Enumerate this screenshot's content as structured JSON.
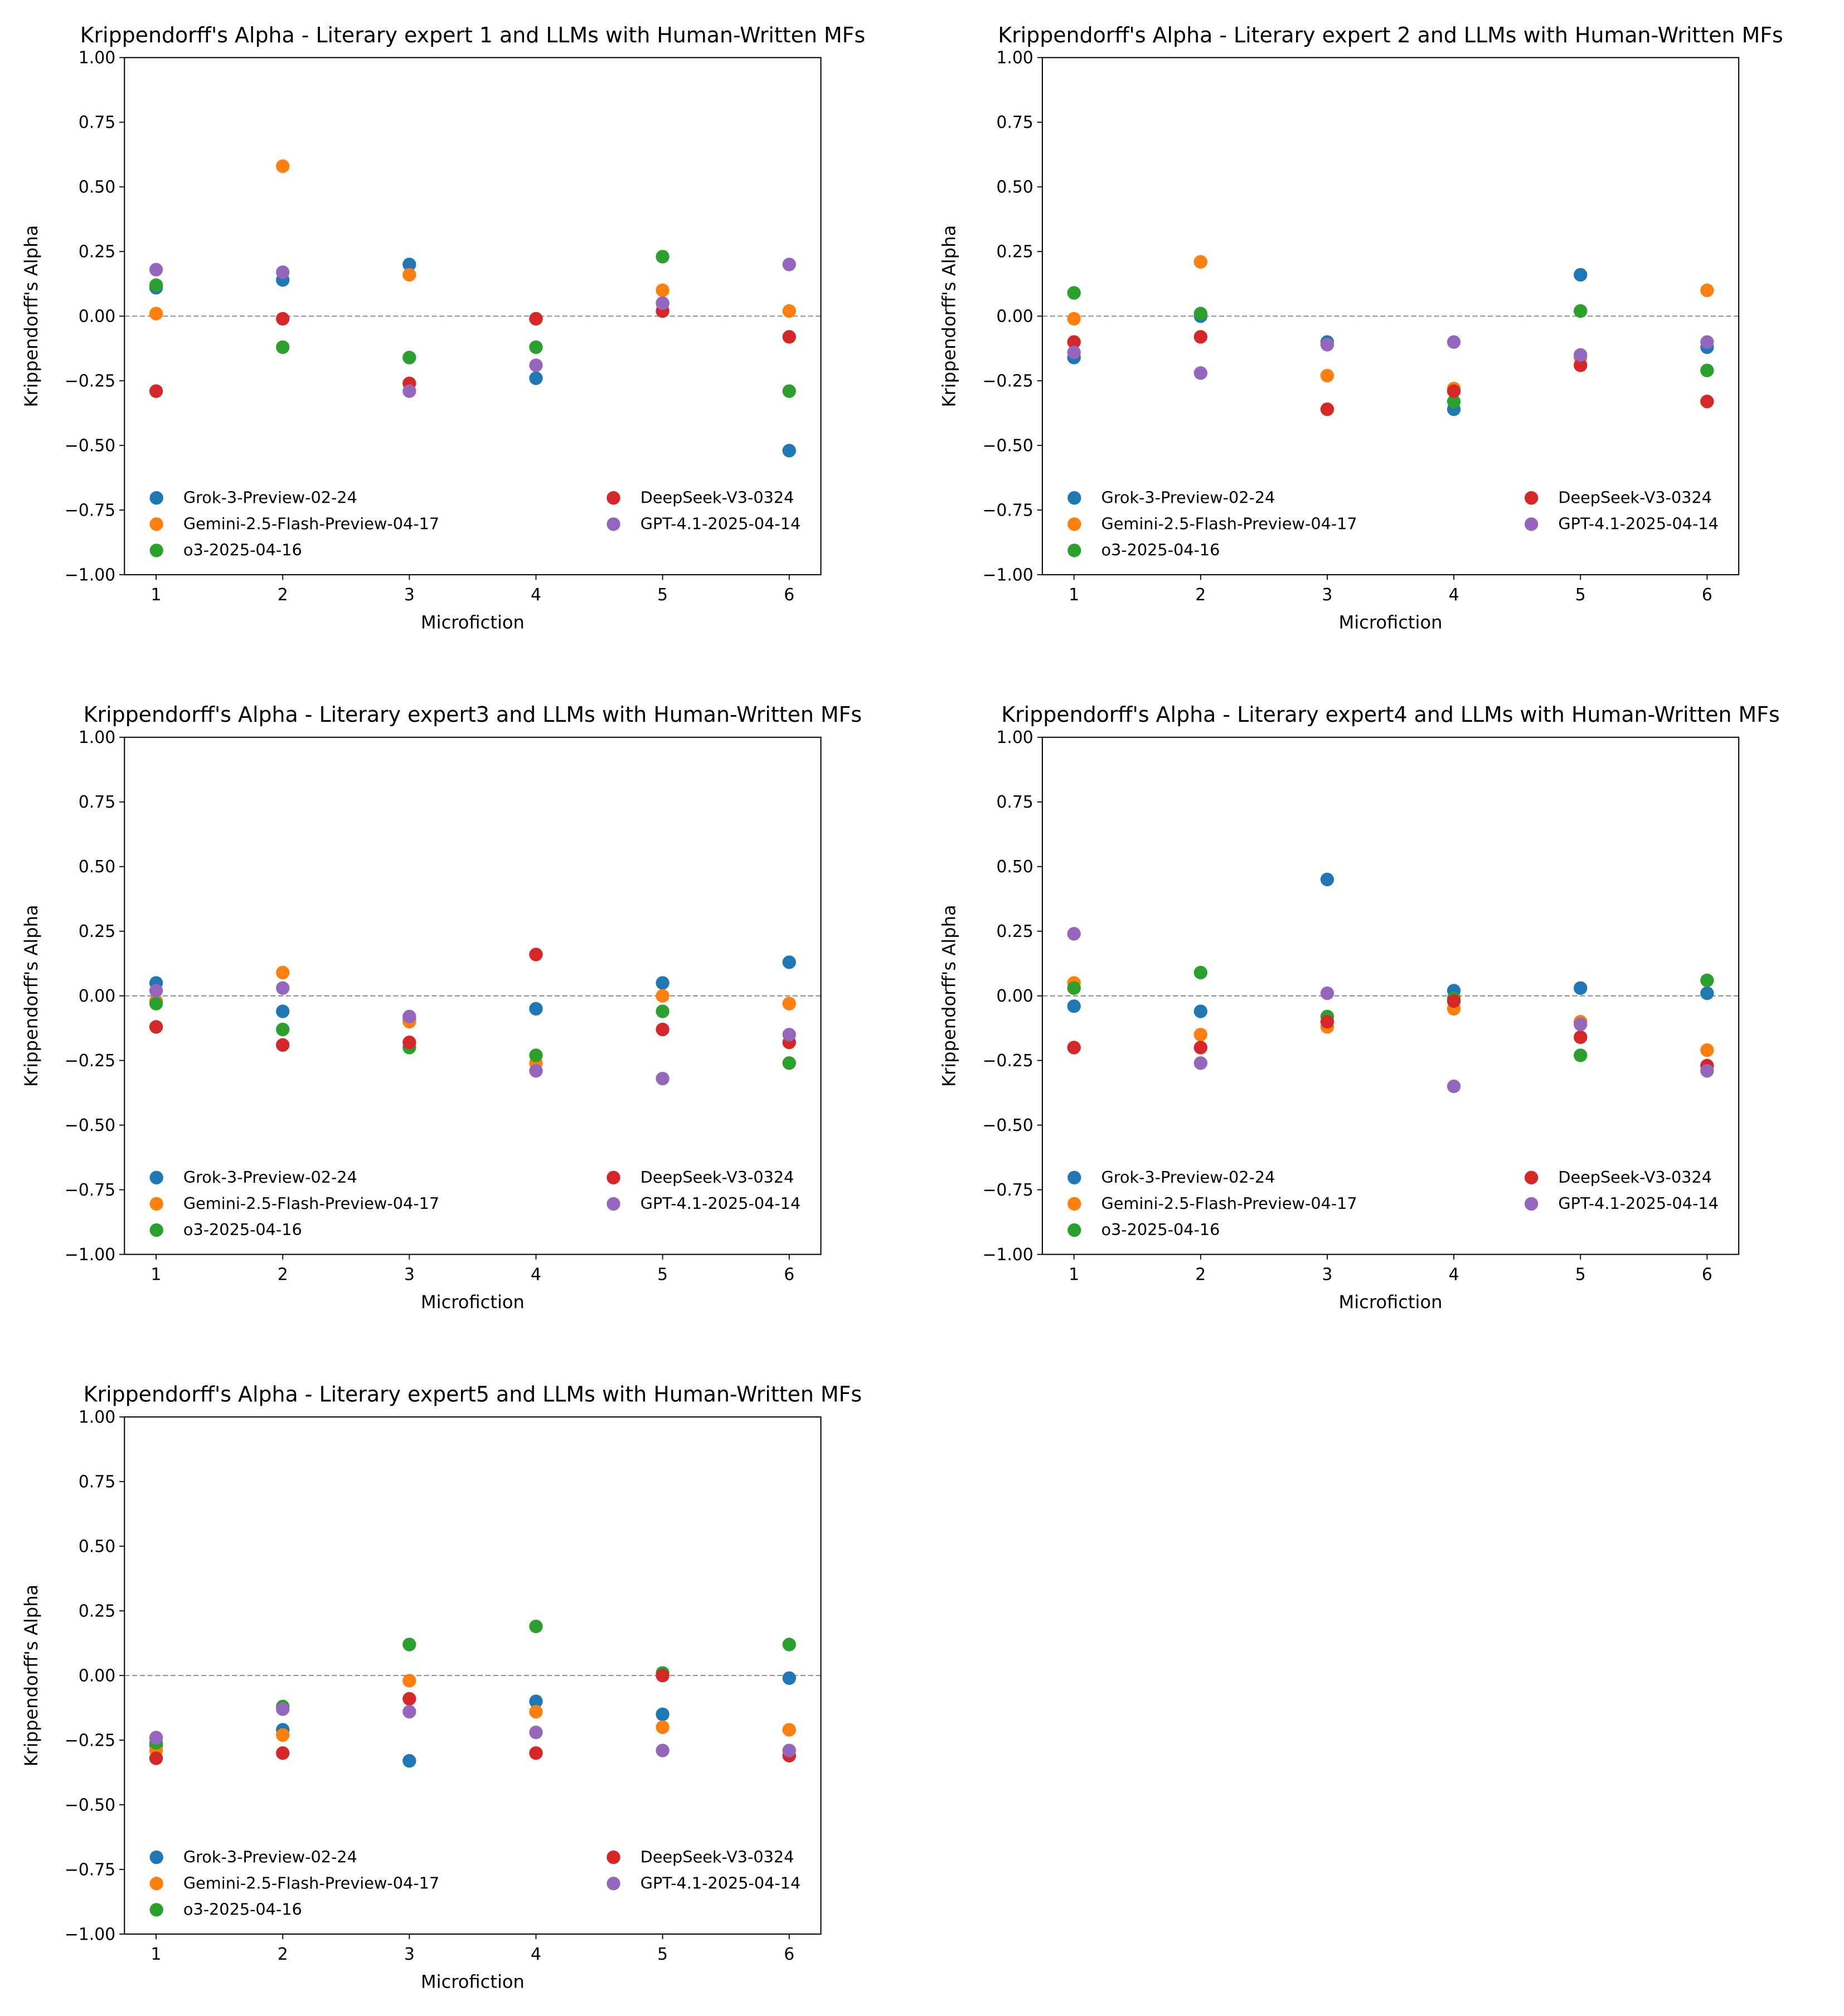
{
  "colors": {
    "Grok-3-Preview-02-24": "#1f77b4",
    "Gemini-2.5-Flash-Preview-04-17": "#ff7f0e",
    "o3-2025-04-16": "#2ca02c",
    "DeepSeek-V3-0324": "#d62728",
    "GPT-4.1-2025-04-14": "#9467bd"
  },
  "chart_data": [
    {
      "type": "scatter",
      "title": "Krippendorff's Alpha - Literary expert 1 and LLMs with Human-Written MFs",
      "xlabel": "Microfiction",
      "ylabel": "Krippendorff's Alpha",
      "ylim": [
        -1,
        1
      ],
      "xlim": [
        0.75,
        6.25
      ],
      "x": [
        1,
        2,
        3,
        4,
        5,
        6
      ],
      "yticks": [
        "1.00",
        "0.75",
        "0.50",
        "0.25",
        "0.00",
        "−0.25",
        "−0.50",
        "−0.75",
        "−1.00"
      ],
      "xticks": [
        "1",
        "2",
        "3",
        "4",
        "5",
        "6"
      ],
      "reference_line": 0,
      "legend": "lower center, 2 columns",
      "series": [
        {
          "name": "Grok-3-Preview-02-24",
          "values": [
            0.11,
            0.14,
            0.2,
            -0.24,
            0.05,
            -0.52
          ]
        },
        {
          "name": "Gemini-2.5-Flash-Preview-04-17",
          "values": [
            0.01,
            0.58,
            0.16,
            -0.01,
            0.1,
            0.02
          ]
        },
        {
          "name": "o3-2025-04-16",
          "values": [
            0.12,
            -0.12,
            -0.16,
            -0.12,
            0.23,
            -0.29
          ]
        },
        {
          "name": "DeepSeek-V3-0324",
          "values": [
            -0.29,
            -0.01,
            -0.26,
            -0.01,
            0.02,
            -0.08
          ]
        },
        {
          "name": "GPT-4.1-2025-04-14",
          "values": [
            0.18,
            0.17,
            -0.29,
            -0.19,
            0.05,
            0.2
          ]
        }
      ]
    },
    {
      "type": "scatter",
      "title": "Krippendorff's Alpha - Literary expert 2 and LLMs with Human-Written MFs",
      "xlabel": "Microfiction",
      "ylabel": "Krippendorff's Alpha",
      "ylim": [
        -1,
        1
      ],
      "xlim": [
        0.75,
        6.25
      ],
      "x": [
        1,
        2,
        3,
        4,
        5,
        6
      ],
      "yticks": [
        "1.00",
        "0.75",
        "0.50",
        "0.25",
        "0.00",
        "−0.25",
        "−0.50",
        "−0.75",
        "−1.00"
      ],
      "xticks": [
        "1",
        "2",
        "3",
        "4",
        "5",
        "6"
      ],
      "reference_line": 0,
      "legend": "lower center, 2 columns",
      "series": [
        {
          "name": "Grok-3-Preview-02-24",
          "values": [
            -0.16,
            0.0,
            -0.1,
            -0.36,
            0.16,
            -0.12
          ]
        },
        {
          "name": "Gemini-2.5-Flash-Preview-04-17",
          "values": [
            -0.01,
            0.21,
            -0.23,
            -0.28,
            -0.16,
            0.1
          ]
        },
        {
          "name": "o3-2025-04-16",
          "values": [
            0.09,
            0.01,
            -0.11,
            -0.33,
            0.02,
            -0.21
          ]
        },
        {
          "name": "DeepSeek-V3-0324",
          "values": [
            -0.1,
            -0.08,
            -0.36,
            -0.29,
            -0.19,
            -0.33
          ]
        },
        {
          "name": "GPT-4.1-2025-04-14",
          "values": [
            -0.14,
            -0.22,
            -0.11,
            -0.1,
            -0.15,
            -0.1
          ]
        }
      ]
    },
    {
      "type": "scatter",
      "title": "Krippendorff's Alpha - Literary expert3 and LLMs with Human-Written MFs",
      "xlabel": "Microfiction",
      "ylabel": "Krippendorff's Alpha",
      "ylim": [
        -1,
        1
      ],
      "xlim": [
        0.75,
        6.25
      ],
      "x": [
        1,
        2,
        3,
        4,
        5,
        6
      ],
      "yticks": [
        "1.00",
        "0.75",
        "0.50",
        "0.25",
        "0.00",
        "−0.25",
        "−0.50",
        "−0.75",
        "−1.00"
      ],
      "xticks": [
        "1",
        "2",
        "3",
        "4",
        "5",
        "6"
      ],
      "reference_line": 0,
      "legend": "lower center, 2 columns",
      "series": [
        {
          "name": "Grok-3-Preview-02-24",
          "values": [
            0.05,
            -0.06,
            -0.09,
            -0.05,
            0.05,
            0.13
          ]
        },
        {
          "name": "Gemini-2.5-Flash-Preview-04-17",
          "values": [
            -0.02,
            0.09,
            -0.1,
            -0.26,
            0.0,
            -0.03
          ]
        },
        {
          "name": "o3-2025-04-16",
          "values": [
            -0.03,
            -0.13,
            -0.2,
            -0.23,
            -0.06,
            -0.26
          ]
        },
        {
          "name": "DeepSeek-V3-0324",
          "values": [
            -0.12,
            -0.19,
            -0.18,
            0.16,
            -0.13,
            -0.18
          ]
        },
        {
          "name": "GPT-4.1-2025-04-14",
          "values": [
            0.02,
            0.03,
            -0.08,
            -0.29,
            -0.32,
            -0.15
          ]
        }
      ]
    },
    {
      "type": "scatter",
      "title": "Krippendorff's Alpha - Literary expert4 and LLMs with Human-Written MFs",
      "xlabel": "Microfiction",
      "ylabel": "Krippendorff's Alpha",
      "ylim": [
        -1,
        1
      ],
      "xlim": [
        0.75,
        6.25
      ],
      "x": [
        1,
        2,
        3,
        4,
        5,
        6
      ],
      "yticks": [
        "1.00",
        "0.75",
        "0.50",
        "0.25",
        "0.00",
        "−0.25",
        "−0.50",
        "−0.75",
        "−1.00"
      ],
      "xticks": [
        "1",
        "2",
        "3",
        "4",
        "5",
        "6"
      ],
      "reference_line": 0,
      "legend": "lower center, 2 columns",
      "series": [
        {
          "name": "Grok-3-Preview-02-24",
          "values": [
            -0.04,
            -0.06,
            0.45,
            0.02,
            0.03,
            0.01
          ]
        },
        {
          "name": "Gemini-2.5-Flash-Preview-04-17",
          "values": [
            0.05,
            -0.15,
            -0.12,
            -0.05,
            -0.1,
            -0.21
          ]
        },
        {
          "name": "o3-2025-04-16",
          "values": [
            0.03,
            0.09,
            -0.08,
            -0.01,
            -0.23,
            0.06
          ]
        },
        {
          "name": "DeepSeek-V3-0324",
          "values": [
            -0.2,
            -0.2,
            -0.1,
            -0.02,
            -0.16,
            -0.27
          ]
        },
        {
          "name": "GPT-4.1-2025-04-14",
          "values": [
            0.24,
            -0.26,
            0.01,
            -0.35,
            -0.11,
            -0.29
          ]
        }
      ]
    },
    {
      "type": "scatter",
      "title": "Krippendorff's Alpha - Literary expert5 and LLMs with Human-Written MFs",
      "xlabel": "Microfiction",
      "ylabel": "Krippendorff's Alpha",
      "ylim": [
        -1,
        1
      ],
      "xlim": [
        0.75,
        6.25
      ],
      "x": [
        1,
        2,
        3,
        4,
        5,
        6
      ],
      "yticks": [
        "1.00",
        "0.75",
        "0.50",
        "0.25",
        "0.00",
        "−0.25",
        "−0.50",
        "−0.75",
        "−1.00"
      ],
      "xticks": [
        "1",
        "2",
        "3",
        "4",
        "5",
        "6"
      ],
      "reference_line": 0,
      "legend": "lower center, 2 columns",
      "series": [
        {
          "name": "Grok-3-Preview-02-24",
          "values": [
            -0.27,
            -0.21,
            -0.33,
            -0.1,
            -0.15,
            -0.01
          ]
        },
        {
          "name": "Gemini-2.5-Flash-Preview-04-17",
          "values": [
            -0.29,
            -0.23,
            -0.02,
            -0.14,
            -0.2,
            -0.21
          ]
        },
        {
          "name": "o3-2025-04-16",
          "values": [
            -0.26,
            -0.12,
            0.12,
            0.19,
            0.01,
            0.12
          ]
        },
        {
          "name": "DeepSeek-V3-0324",
          "values": [
            -0.32,
            -0.3,
            -0.09,
            -0.3,
            0.0,
            -0.31
          ]
        },
        {
          "name": "GPT-4.1-2025-04-14",
          "values": [
            -0.24,
            -0.13,
            -0.14,
            -0.22,
            -0.29,
            -0.29
          ]
        }
      ]
    }
  ]
}
